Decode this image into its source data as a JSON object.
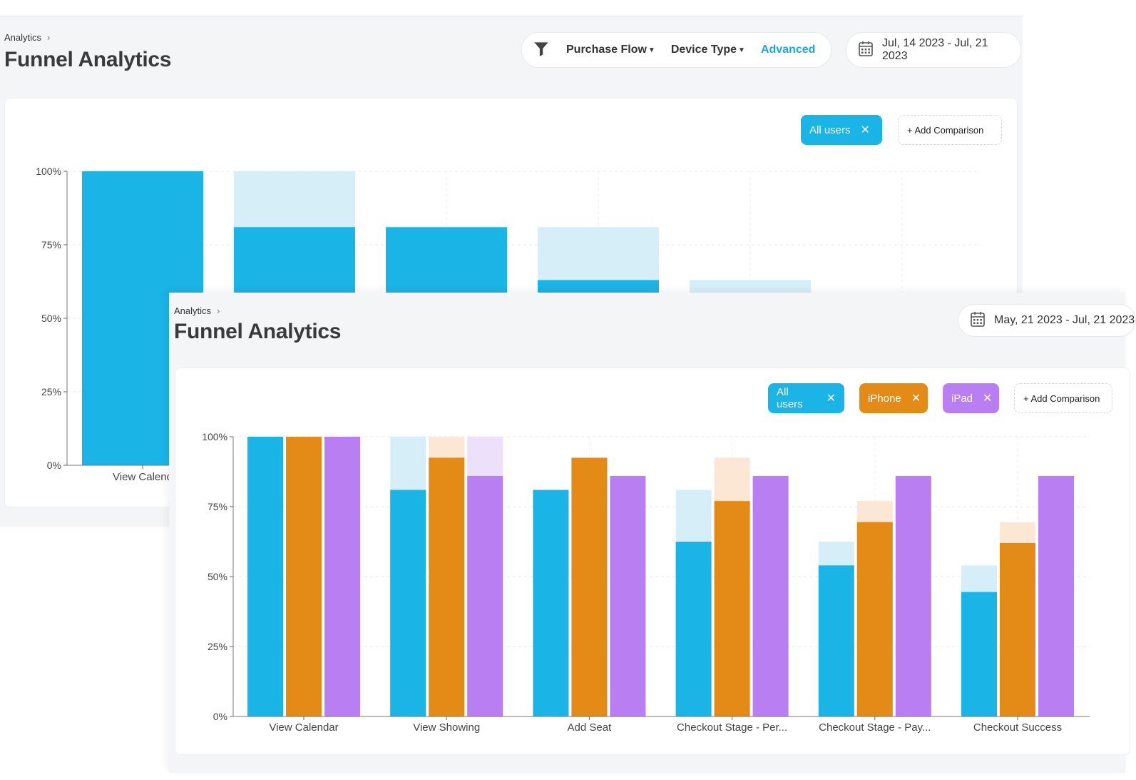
{
  "colors": {
    "all_users": "#1ab4e6",
    "all_users_light": "#d6eef8",
    "iphone": "#e48a17",
    "iphone_light": "#fbe7d3",
    "ipad": "#b97ff2",
    "ipad_light": "#ede0fb",
    "accent": "#1aa7dc"
  },
  "back": {
    "breadcrumb": "Analytics",
    "title": "Funnel Analytics",
    "filters": {
      "purchase_flow": "Purchase Flow",
      "device_type": "Device Type",
      "advanced": "Advanced"
    },
    "date_range": "Jul, 14 2023 - Jul, 21 2023",
    "chips": [
      {
        "label": "All users",
        "close": "✕"
      }
    ],
    "add_comparison": "+ Add Comparison"
  },
  "front": {
    "breadcrumb": "Analytics",
    "title": "Funnel Analytics",
    "date_range": "May, 21 2023 - Jul, 21 2023",
    "chips": [
      {
        "label": "All users",
        "close": "✕"
      },
      {
        "label": "iPhone",
        "close": "✕"
      },
      {
        "label": "iPad",
        "close": "✕"
      }
    ],
    "add_comparison": "+ Add Comparison"
  },
  "chart_data": [
    {
      "type": "bar",
      "y_ticks": [
        "0%",
        "25%",
        "50%",
        "75%",
        "100%"
      ],
      "ylim": [
        0,
        100
      ],
      "categories": [
        "View Calend",
        "",
        "",
        "",
        "",
        ""
      ],
      "grid": true,
      "series": [
        {
          "name": "All users",
          "color_key": "all_users",
          "values": [
            100,
            81,
            81,
            63,
            null,
            null
          ],
          "previous": [
            100,
            100,
            81,
            81,
            63,
            null
          ]
        }
      ]
    },
    {
      "type": "bar",
      "y_ticks": [
        "0%",
        "25%",
        "50%",
        "75%",
        "100%"
      ],
      "ylim": [
        0,
        100
      ],
      "categories": [
        "View Calendar",
        "View Showing",
        "Add Seat",
        "Checkout Stage - Per...",
        "Checkout Stage - Pay...",
        "Checkout Success"
      ],
      "grid": true,
      "series": [
        {
          "name": "All users",
          "color_key": "all_users",
          "values": [
            100,
            81,
            81,
            62.5,
            54,
            44.5
          ],
          "previous": [
            100,
            100,
            81,
            81,
            62.5,
            54
          ]
        },
        {
          "name": "iPhone",
          "color_key": "iphone",
          "values": [
            100,
            92.5,
            92.5,
            77,
            69.5,
            62
          ],
          "previous": [
            100,
            100,
            92.5,
            92.5,
            77,
            69.5
          ]
        },
        {
          "name": "iPad",
          "color_key": "ipad",
          "values": [
            100,
            86,
            86,
            86,
            86,
            86
          ],
          "previous": [
            100,
            100,
            86,
            86,
            86,
            86
          ]
        }
      ]
    }
  ]
}
